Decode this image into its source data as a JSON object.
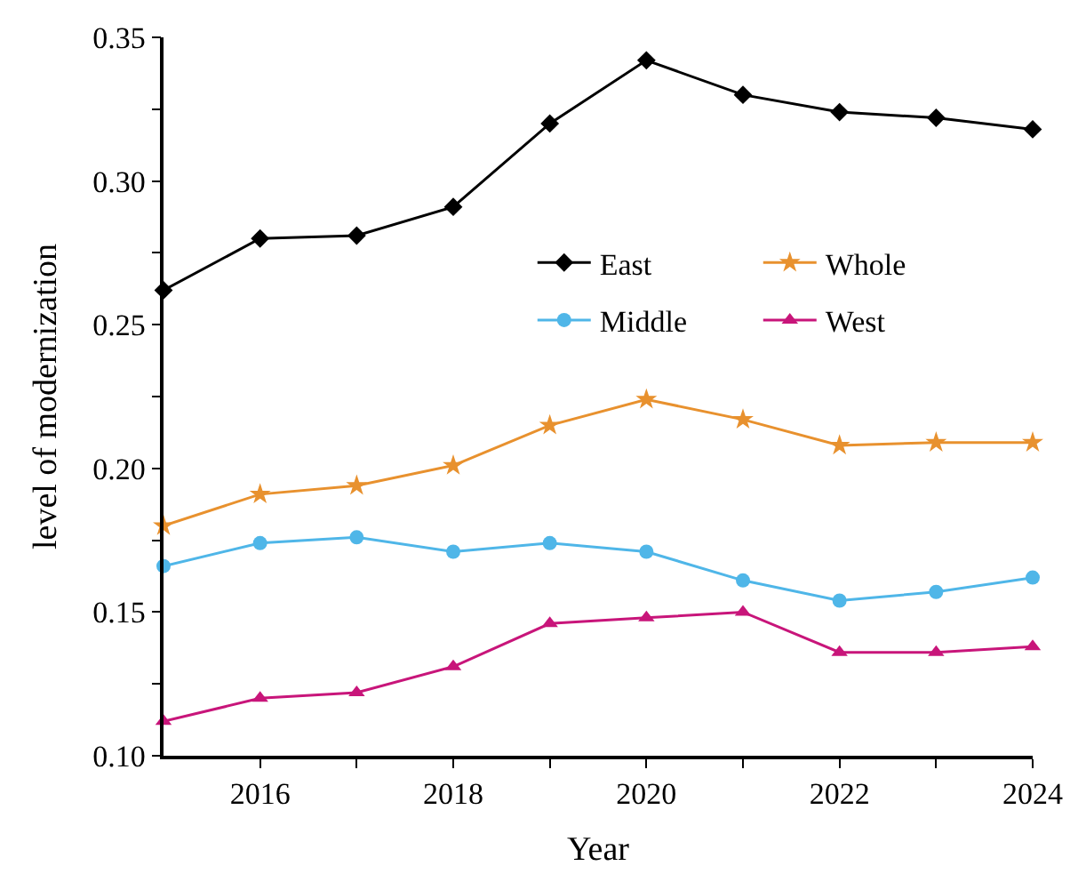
{
  "chart_data": {
    "type": "line",
    "xlabel": "Year",
    "ylabel": "level of modernization",
    "x": [
      2015,
      2016,
      2017,
      2018,
      2019,
      2020,
      2021,
      2022,
      2023,
      2024
    ],
    "series": [
      {
        "name": "East",
        "color": "#000000",
        "marker": "diamond",
        "values": [
          0.262,
          0.28,
          0.281,
          0.291,
          0.32,
          0.342,
          0.33,
          0.324,
          0.322,
          0.318
        ]
      },
      {
        "name": "Whole",
        "color": "#e8912e",
        "marker": "star",
        "values": [
          0.18,
          0.191,
          0.194,
          0.201,
          0.215,
          0.224,
          0.217,
          0.208,
          0.209,
          0.209
        ]
      },
      {
        "name": "Middle",
        "color": "#4fb6e8",
        "marker": "circle",
        "values": [
          0.166,
          0.174,
          0.176,
          0.171,
          0.174,
          0.171,
          0.161,
          0.154,
          0.157,
          0.162
        ]
      },
      {
        "name": "West",
        "color": "#c8157a",
        "marker": "triangle",
        "values": [
          0.112,
          0.12,
          0.122,
          0.131,
          0.146,
          0.148,
          0.15,
          0.136,
          0.136,
          0.138
        ]
      }
    ],
    "xlim": [
      2015,
      2024
    ],
    "xticks": [
      2016,
      {
        "value": 2017,
        "label": null
      },
      2018,
      {
        "value": 2019,
        "label": null
      },
      2020,
      {
        "value": 2021,
        "label": null
      },
      2022,
      {
        "value": 2023,
        "label": null
      },
      2024
    ],
    "ylim": [
      0.1,
      0.35
    ],
    "yticks": [
      {
        "value": 0.1,
        "label": "0.10"
      },
      {
        "value": 0.125,
        "label": null
      },
      {
        "value": 0.15,
        "label": "0.15"
      },
      {
        "value": 0.175,
        "label": null
      },
      {
        "value": 0.2,
        "label": "0.20"
      },
      {
        "value": 0.225,
        "label": null
      },
      {
        "value": 0.25,
        "label": "0.25"
      },
      {
        "value": 0.275,
        "label": null
      },
      {
        "value": 0.3,
        "label": "0.30"
      },
      {
        "value": 0.325,
        "label": null
      },
      {
        "value": 0.35,
        "label": "0.35"
      }
    ],
    "legend": "right",
    "line_style": "solid"
  }
}
